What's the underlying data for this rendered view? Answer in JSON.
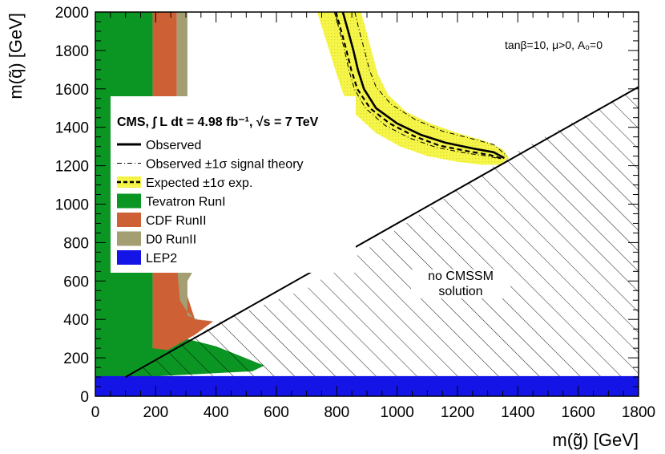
{
  "chart_data": {
    "type": "exclusion-contour",
    "xlabel": "m(g̃) [GeV]",
    "ylabel": "m(q̃) [GeV]",
    "xlim": [
      0,
      1800
    ],
    "ylim": [
      0,
      2000
    ],
    "xticks": [
      0,
      200,
      400,
      600,
      800,
      1000,
      1200,
      1400,
      1600,
      1800
    ],
    "yticks": [
      0,
      200,
      400,
      600,
      800,
      1000,
      1200,
      1400,
      1600,
      1800,
      2000
    ],
    "xtick_labels": [
      "0",
      "200",
      "400",
      "600",
      "800",
      "1000",
      "1200",
      "1400",
      "1600",
      "1800"
    ],
    "ytick_labels": [
      "0",
      "200",
      "400",
      "600",
      "800",
      "1000",
      "1200",
      "1400",
      "1600",
      "1800",
      "2000"
    ],
    "model_params": "tanβ=10, μ>0, A₀=0",
    "legend_header": "CMS, ∫ L dt = 4.98 fb⁻¹, √s = 7 TeV",
    "annotation": [
      "no CMSSM",
      "solution"
    ],
    "colors": {
      "tevatron": "#0b9624",
      "cdf": "#cd6135",
      "d0": "#a39f72",
      "lep2": "#1414e6",
      "band": "#f6f64a",
      "band_dots": "#d9d92a"
    },
    "legend": [
      {
        "key": "observed",
        "label": "Observed",
        "style": "solid-thick"
      },
      {
        "key": "theory",
        "label": "Observed ±1σ signal theory",
        "style": "dash-dot"
      },
      {
        "key": "expected",
        "label": "Expected ±1σ exp.",
        "style": "dashed-band"
      },
      {
        "key": "tevatron",
        "label": "Tevatron RunI",
        "style": "fill"
      },
      {
        "key": "cdf",
        "label": "CDF RunII",
        "style": "fill"
      },
      {
        "key": "d0",
        "label": "D0 RunII",
        "style": "fill"
      },
      {
        "key": "lep2",
        "label": "LEP2",
        "style": "fill"
      }
    ],
    "series": [
      {
        "name": "Observed",
        "points": [
          [
            820,
            2000
          ],
          [
            838,
            1900
          ],
          [
            855,
            1800
          ],
          [
            870,
            1700
          ],
          [
            890,
            1600
          ],
          [
            930,
            1500
          ],
          [
            1000,
            1420
          ],
          [
            1080,
            1360
          ],
          [
            1160,
            1320
          ],
          [
            1250,
            1290
          ],
          [
            1320,
            1270
          ],
          [
            1355,
            1240
          ]
        ]
      },
      {
        "name": "Observed +1σ signal theory",
        "points": [
          [
            860,
            2000
          ],
          [
            875,
            1900
          ],
          [
            892,
            1800
          ],
          [
            908,
            1700
          ],
          [
            930,
            1610
          ],
          [
            980,
            1520
          ],
          [
            1060,
            1440
          ],
          [
            1150,
            1380
          ],
          [
            1250,
            1340
          ],
          [
            1320,
            1310
          ],
          [
            1365,
            1250
          ]
        ]
      },
      {
        "name": "Observed -1σ signal theory",
        "points": [
          [
            792,
            2000
          ],
          [
            810,
            1900
          ],
          [
            826,
            1800
          ],
          [
            840,
            1700
          ],
          [
            858,
            1600
          ],
          [
            895,
            1500
          ],
          [
            960,
            1410
          ],
          [
            1040,
            1345
          ],
          [
            1130,
            1295
          ],
          [
            1230,
            1265
          ],
          [
            1300,
            1250
          ],
          [
            1345,
            1235
          ]
        ]
      },
      {
        "name": "Expected",
        "points": [
          [
            797,
            2000
          ],
          [
            815,
            1900
          ],
          [
            832,
            1800
          ],
          [
            848,
            1700
          ],
          [
            868,
            1600
          ],
          [
            910,
            1500
          ],
          [
            975,
            1420
          ],
          [
            1055,
            1355
          ],
          [
            1140,
            1305
          ],
          [
            1235,
            1275
          ],
          [
            1310,
            1255
          ],
          [
            1350,
            1235
          ]
        ]
      },
      {
        "name": "Expected ±1σ band upper",
        "points": [
          [
            1370,
            1240
          ],
          [
            1350,
            1285
          ],
          [
            1290,
            1330
          ],
          [
            1200,
            1370
          ],
          [
            1110,
            1420
          ],
          [
            1030,
            1480
          ],
          [
            970,
            1570
          ],
          [
            935,
            1680
          ],
          [
            915,
            1800
          ],
          [
            895,
            1920
          ],
          [
            880,
            2000
          ]
        ]
      },
      {
        "name": "Expected ±1σ band lower",
        "points": [
          [
            735,
            2000
          ],
          [
            755,
            1900
          ],
          [
            775,
            1800
          ],
          [
            795,
            1700
          ],
          [
            820,
            1580
          ],
          [
            860,
            1470
          ],
          [
            930,
            1370
          ],
          [
            1010,
            1300
          ],
          [
            1100,
            1250
          ],
          [
            1200,
            1220
          ],
          [
            1280,
            1205
          ],
          [
            1340,
            1205
          ]
        ]
      },
      {
        "name": "Tevatron RunI",
        "points": [
          [
            0,
            0
          ],
          [
            0,
            2000
          ],
          [
            190,
            2000
          ],
          [
            190,
            250
          ],
          [
            300,
            300
          ],
          [
            400,
            260
          ],
          [
            560,
            160
          ],
          [
            520,
            130
          ],
          [
            150,
            100
          ],
          [
            0,
            100
          ]
        ]
      },
      {
        "name": "CDF RunII",
        "points": [
          [
            190,
            2000
          ],
          [
            270,
            2000
          ],
          [
            270,
            690
          ],
          [
            330,
            400
          ],
          [
            390,
            390
          ],
          [
            330,
            320
          ],
          [
            240,
            240
          ],
          [
            190,
            250
          ]
        ]
      },
      {
        "name": "D0 RunII",
        "points": [
          [
            270,
            2000
          ],
          [
            305,
            2000
          ],
          [
            305,
            700
          ],
          [
            320,
            640
          ],
          [
            305,
            600
          ],
          [
            305,
            420
          ],
          [
            340,
            400
          ],
          [
            400,
            390
          ],
          [
            330,
            400
          ],
          [
            300,
            450
          ],
          [
            280,
            500
          ],
          [
            270,
            690
          ]
        ]
      },
      {
        "name": "LEP2",
        "points": [
          [
            0,
            0
          ],
          [
            1800,
            0
          ],
          [
            1800,
            105
          ],
          [
            0,
            105
          ]
        ]
      },
      {
        "name": "no CMSSM solution",
        "points": [
          [
            0,
            0
          ],
          [
            1800,
            0
          ],
          [
            1800,
            1610
          ],
          [
            1370,
            1250
          ],
          [
            700,
            560
          ],
          [
            420,
            395
          ],
          [
            280,
            270
          ],
          [
            100,
            100
          ]
        ]
      }
    ]
  }
}
